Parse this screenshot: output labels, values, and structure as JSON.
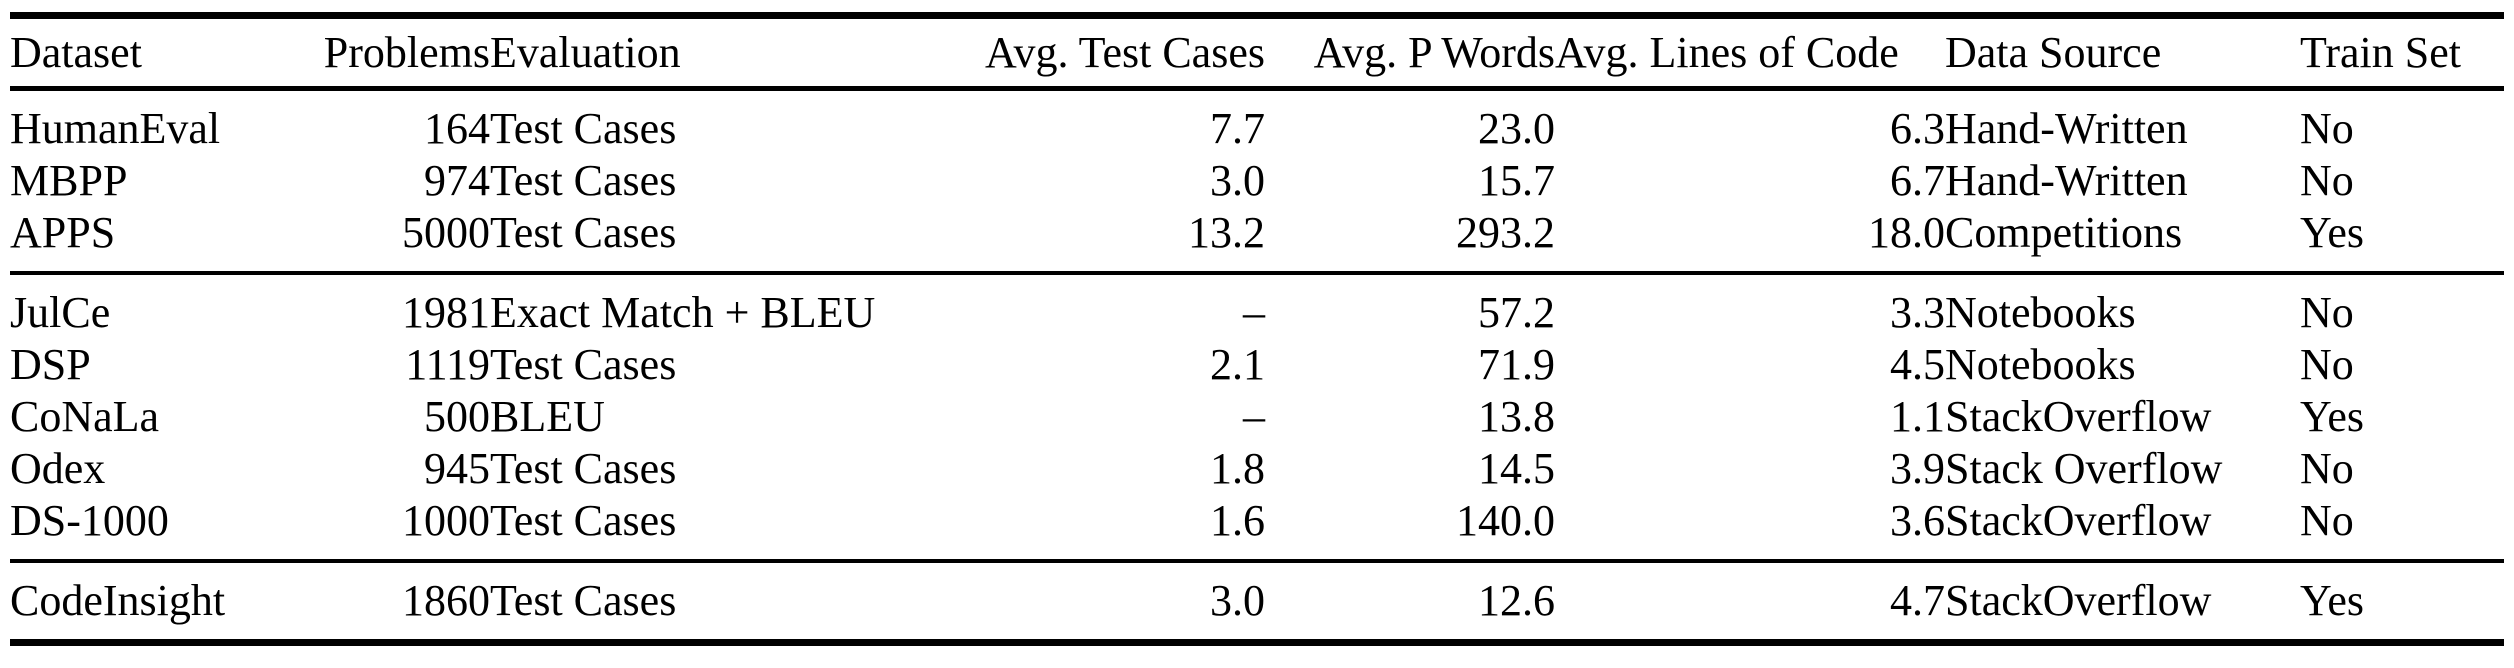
{
  "colors": {
    "background": "#ffffff",
    "text": "#000000",
    "rules": "#000000"
  },
  "table": {
    "columns": [
      {
        "key": "dataset",
        "label": "Dataset"
      },
      {
        "key": "problems",
        "label": "Problems"
      },
      {
        "key": "evaluation",
        "label": "Evaluation"
      },
      {
        "key": "avg-test-cases",
        "label": "Avg. Test Cases"
      },
      {
        "key": "avg-p-words",
        "label": "Avg. P Words"
      },
      {
        "key": "avg-lines-of-code",
        "label": "Avg. Lines of Code"
      },
      {
        "key": "data-source",
        "label": "Data Source"
      },
      {
        "key": "train-set",
        "label": "Train Set"
      }
    ],
    "sections": [
      {
        "rows": [
          [
            "HumanEval",
            "164",
            "Test Cases",
            "7.7",
            "23.0",
            "6.3",
            "Hand-Written",
            "No"
          ],
          [
            "MBPP",
            "974",
            "Test Cases",
            "3.0",
            "15.7",
            "6.7",
            "Hand-Written",
            "No"
          ],
          [
            "APPS",
            "5000",
            "Test Cases",
            "13.2",
            "293.2",
            "18.0",
            "Competitions",
            "Yes"
          ]
        ]
      },
      {
        "rows": [
          [
            "JulCe",
            "1981",
            "Exact Match + BLEU",
            "–",
            "57.2",
            "3.3",
            "Notebooks",
            "No"
          ],
          [
            "DSP",
            "1119",
            "Test Cases",
            "2.1",
            "71.9",
            "4.5",
            "Notebooks",
            "No"
          ],
          [
            "CoNaLa",
            "500",
            "BLEU",
            "–",
            "13.8",
            "1.1",
            "StackOverflow",
            "Yes"
          ],
          [
            "Odex",
            "945",
            "Test Cases",
            "1.8",
            "14.5",
            "3.9",
            "Stack Overflow",
            "No"
          ],
          [
            "DS-1000",
            "1000",
            "Test Cases",
            "1.6",
            "140.0",
            "3.6",
            "StackOverflow",
            "No"
          ]
        ]
      },
      {
        "rows": [
          [
            "CodeInsight",
            "1860",
            "Test Cases",
            "3.0",
            "12.6",
            "4.7",
            "StackOverflow",
            "Yes"
          ]
        ]
      }
    ]
  }
}
